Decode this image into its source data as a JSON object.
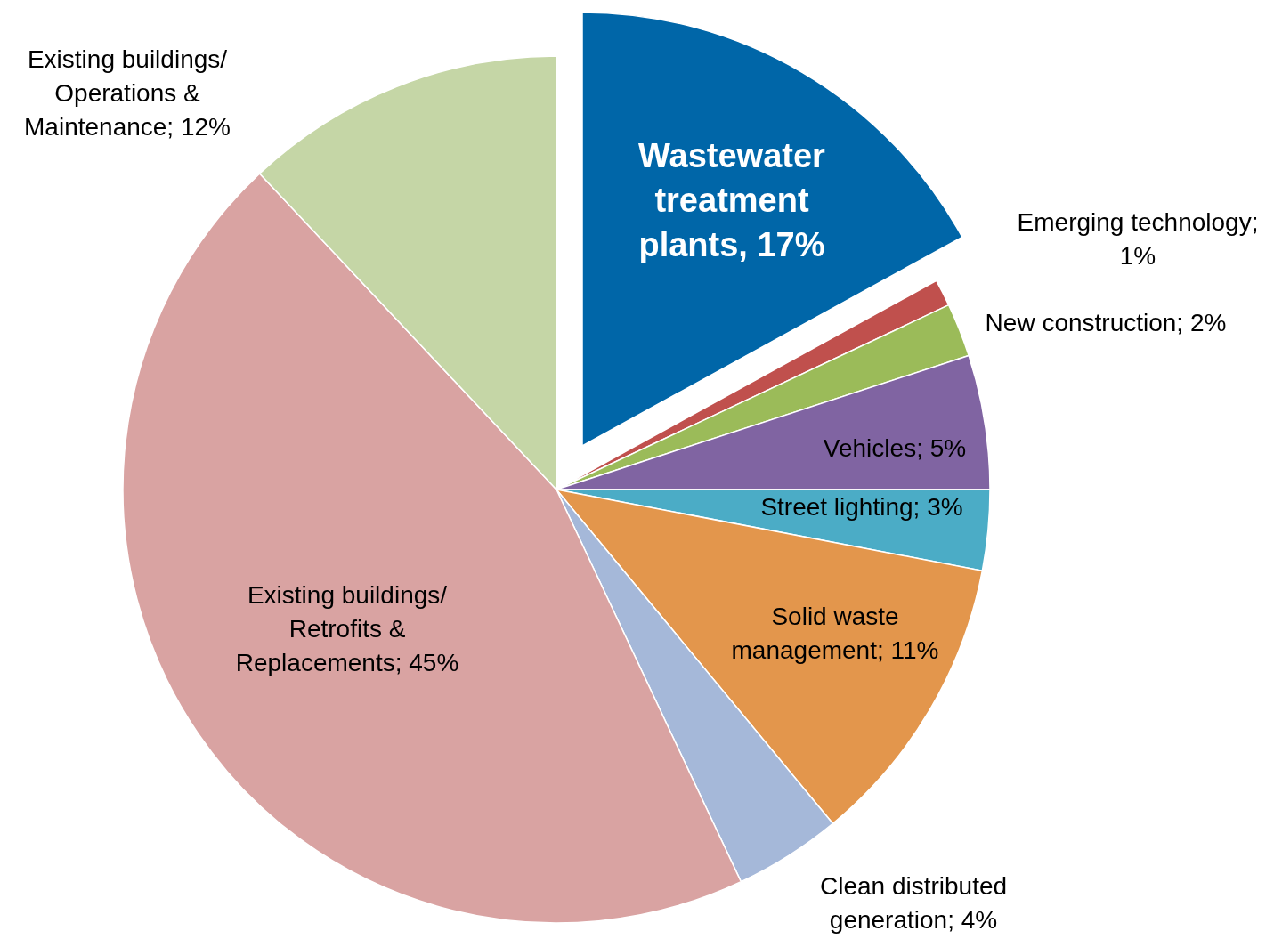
{
  "chart_data": {
    "type": "pie",
    "categories": [
      "Wastewater treatment plants, 17%",
      "Emerging technology; 1%",
      "New construction; 2%",
      "Vehicles; 5%",
      "Street lighting; 3%",
      "Solid waste management; 11%",
      "Clean distributed generation; 4%",
      "Existing buildings/ Retrofits & Replacements; 45%",
      "Existing buildings/ Operations & Maintenance; 12%"
    ],
    "values": [
      17,
      1,
      2,
      5,
      3,
      11,
      4,
      45,
      12
    ],
    "colors": [
      "#0066a8",
      "#c0504d",
      "#9bbb59",
      "#8064a2",
      "#4bacc6",
      "#e3964c",
      "#a5b8d9",
      "#d9a3a2",
      "#c5d6a6"
    ]
  }
}
